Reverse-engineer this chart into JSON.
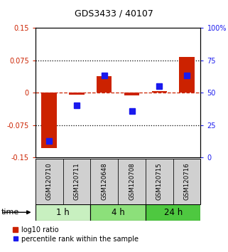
{
  "title": "GDS3433 / 40107",
  "samples": [
    "GSM120710",
    "GSM120711",
    "GSM120648",
    "GSM120708",
    "GSM120715",
    "GSM120716"
  ],
  "log10_ratio": [
    -0.128,
    -0.004,
    0.038,
    -0.007,
    0.004,
    0.082
  ],
  "percentile_rank": [
    13,
    40,
    63,
    36,
    55,
    63
  ],
  "time_groups": [
    {
      "label": "1 h",
      "start": 0,
      "end": 2,
      "color": "#c8f0c0"
    },
    {
      "label": "4 h",
      "start": 2,
      "end": 4,
      "color": "#8ce07a"
    },
    {
      "label": "24 h",
      "start": 4,
      "end": 6,
      "color": "#4ec840"
    }
  ],
  "bar_color": "#cc2200",
  "marker_color": "#1a1aee",
  "ylim_left": [
    -0.15,
    0.15
  ],
  "ylim_right": [
    0,
    100
  ],
  "yticks_left": [
    -0.15,
    -0.075,
    0,
    0.075,
    0.15
  ],
  "yticks_right": [
    0,
    25,
    50,
    75,
    100
  ],
  "ytick_labels_left": [
    "-0.15",
    "-0.075",
    "0",
    "0.075",
    "0.15"
  ],
  "ytick_labels_right": [
    "0",
    "25",
    "50",
    "75",
    "100%"
  ],
  "hlines_dotted": [
    0.075,
    -0.075
  ],
  "hline_dashed": 0,
  "legend_items": [
    "log10 ratio",
    "percentile rank within the sample"
  ],
  "legend_colors": [
    "#cc2200",
    "#1a1aee"
  ],
  "time_label": "time",
  "background_color": "#ffffff",
  "sample_box_color": "#d0d0d0",
  "bar_width": 0.55,
  "marker_size": 5.5
}
